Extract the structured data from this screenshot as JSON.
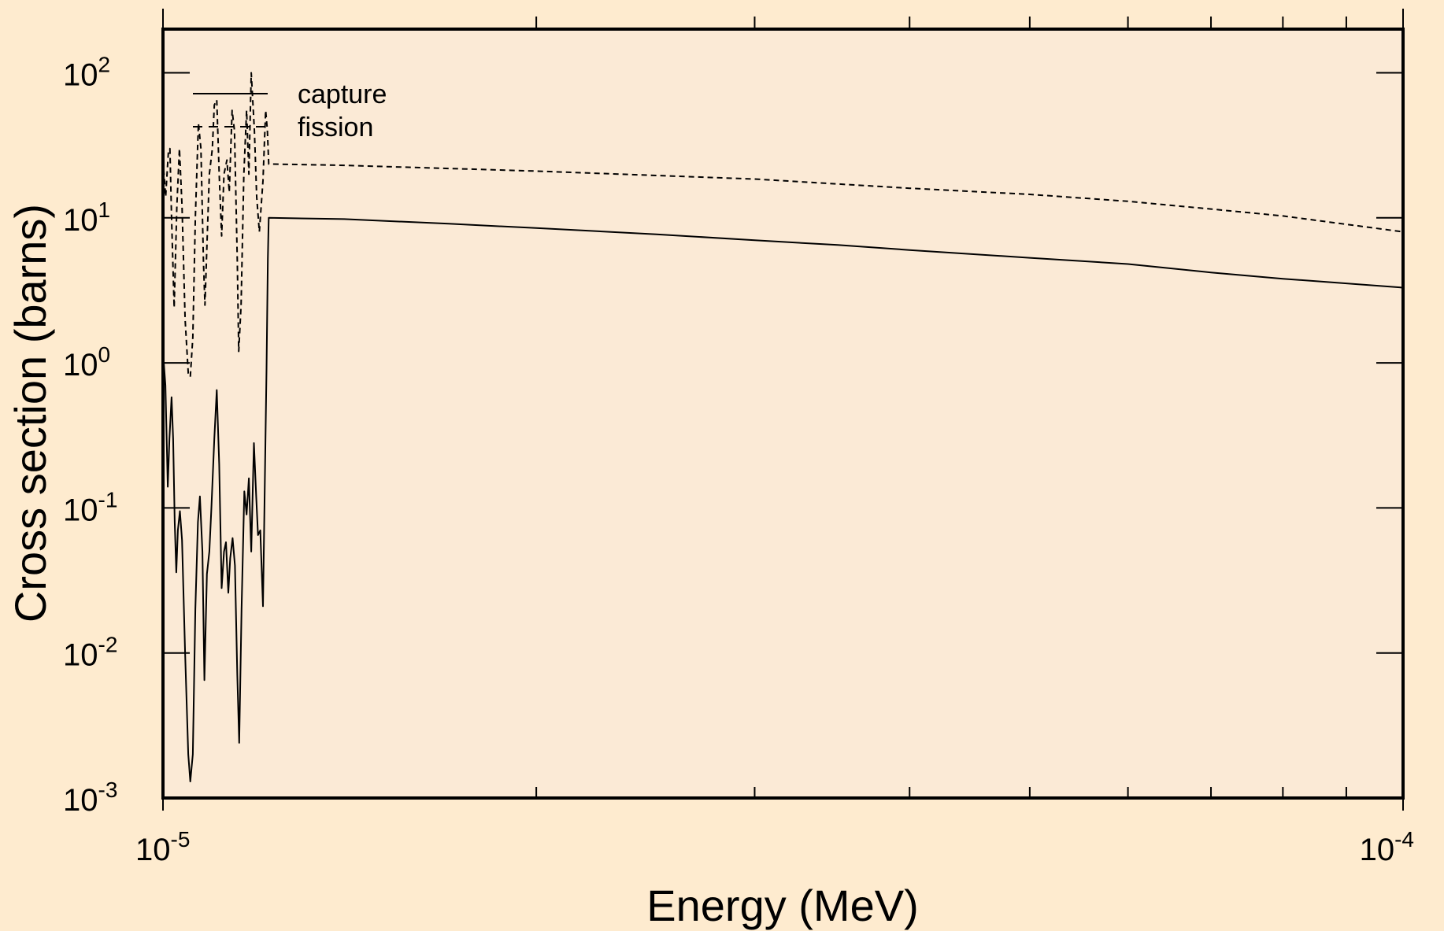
{
  "chart_data": {
    "type": "line",
    "title": "",
    "xlabel": "Energy (MeV)",
    "ylabel": "Cross section (barns)",
    "x_scale": "log",
    "y_scale": "log",
    "xlim": [
      1e-05,
      0.0001
    ],
    "ylim": [
      0.001,
      200
    ],
    "grid": false,
    "legend_position": "top-left",
    "colors": {
      "background": "#feebcf",
      "plot_area": "#fbead6",
      "line": "#000000"
    },
    "x_ticks": [
      {
        "base": "10",
        "exp": "-5",
        "value": 1e-05
      },
      {
        "base": "10",
        "exp": "-4",
        "value": 0.0001
      }
    ],
    "y_ticks": [
      {
        "base": "10",
        "exp": "2",
        "value": 100
      },
      {
        "base": "10",
        "exp": "1",
        "value": 10
      },
      {
        "base": "10",
        "exp": "0",
        "value": 1
      },
      {
        "base": "10",
        "exp": "-1",
        "value": 0.1
      },
      {
        "base": "10",
        "exp": "-2",
        "value": 0.01
      },
      {
        "base": "10",
        "exp": "-3",
        "value": 0.001
      }
    ],
    "series": [
      {
        "name": "capture",
        "style": "solid",
        "points": [
          [
            1e-05,
            1.2
          ],
          [
            1.0045e-05,
            0.7
          ],
          [
            1.009e-05,
            0.14
          ],
          [
            1.012e-05,
            0.3
          ],
          [
            1.016e-05,
            0.58
          ],
          [
            1.019e-05,
            0.3
          ],
          [
            1.022e-05,
            0.08
          ],
          [
            1.025e-05,
            0.036
          ],
          [
            1.028e-05,
            0.07
          ],
          [
            1.032e-05,
            0.095
          ],
          [
            1.036e-05,
            0.06
          ],
          [
            1.042e-05,
            0.01
          ],
          [
            1.048e-05,
            0.002
          ],
          [
            1.052e-05,
            0.0013
          ],
          [
            1.057e-05,
            0.002
          ],
          [
            1.062e-05,
            0.02
          ],
          [
            1.067e-05,
            0.08
          ],
          [
            1.071e-05,
            0.12
          ],
          [
            1.076e-05,
            0.05
          ],
          [
            1.08e-05,
            0.0065
          ],
          [
            1.085e-05,
            0.035
          ],
          [
            1.09e-05,
            0.05
          ],
          [
            1.094e-05,
            0.1
          ],
          [
            1.1e-05,
            0.3
          ],
          [
            1.105e-05,
            0.65
          ],
          [
            1.11e-05,
            0.2
          ],
          [
            1.115e-05,
            0.028
          ],
          [
            1.12e-05,
            0.05
          ],
          [
            1.124e-05,
            0.058
          ],
          [
            1.129e-05,
            0.026
          ],
          [
            1.133e-05,
            0.045
          ],
          [
            1.138e-05,
            0.062
          ],
          [
            1.143e-05,
            0.04
          ],
          [
            1.148e-05,
            0.007
          ],
          [
            1.152e-05,
            0.0024
          ],
          [
            1.157e-05,
            0.02
          ],
          [
            1.163e-05,
            0.13
          ],
          [
            1.168e-05,
            0.09
          ],
          [
            1.173e-05,
            0.16
          ],
          [
            1.178e-05,
            0.05
          ],
          [
            1.184e-05,
            0.28
          ],
          [
            1.189e-05,
            0.12
          ],
          [
            1.193e-05,
            0.065
          ],
          [
            1.198e-05,
            0.07
          ],
          [
            1.204e-05,
            0.021
          ],
          [
            1.212e-05,
            0.9
          ],
          [
            1.215e-05,
            5.2
          ],
          [
            1.217e-05,
            10.0
          ],
          [
            1.4e-05,
            9.8
          ],
          [
            1.7e-05,
            9.1
          ],
          [
            2e-05,
            8.5
          ],
          [
            2.5e-05,
            7.7
          ],
          [
            3e-05,
            7.0
          ],
          [
            3.5e-05,
            6.5
          ],
          [
            4e-05,
            6.0
          ],
          [
            5e-05,
            5.3
          ],
          [
            6e-05,
            4.8
          ],
          [
            7e-05,
            4.2
          ],
          [
            8e-05,
            3.8
          ],
          [
            0.0001,
            3.3
          ]
        ]
      },
      {
        "name": "fission",
        "style": "dashed",
        "points": [
          [
            1e-05,
            25.0
          ],
          [
            1.005e-05,
            14.0
          ],
          [
            1.01e-05,
            28.0
          ],
          [
            1.013e-05,
            30.0
          ],
          [
            1.016e-05,
            10.0
          ],
          [
            1.021e-05,
            2.4
          ],
          [
            1.026e-05,
            12.0
          ],
          [
            1.031e-05,
            30.0
          ],
          [
            1.036e-05,
            12.0
          ],
          [
            1.042e-05,
            2.0
          ],
          [
            1.048e-05,
            0.85
          ],
          [
            1.052e-05,
            0.8
          ],
          [
            1.057e-05,
            1.5
          ],
          [
            1.062e-05,
            10.0
          ],
          [
            1.068e-05,
            45.0
          ],
          [
            1.073e-05,
            30.0
          ],
          [
            1.078e-05,
            5.0
          ],
          [
            1.081e-05,
            2.5
          ],
          [
            1.086e-05,
            8.0
          ],
          [
            1.09e-05,
            20.0
          ],
          [
            1.096e-05,
            30.0
          ],
          [
            1.1e-05,
            60.0
          ],
          [
            1.105e-05,
            65.0
          ],
          [
            1.11e-05,
            20.0
          ],
          [
            1.115e-05,
            7.5
          ],
          [
            1.12e-05,
            20.0
          ],
          [
            1.126e-05,
            25.0
          ],
          [
            1.131e-05,
            15.0
          ],
          [
            1.137e-05,
            55.0
          ],
          [
            1.142e-05,
            40.0
          ],
          [
            1.148e-05,
            5.0
          ],
          [
            1.151e-05,
            1.2
          ],
          [
            1.156e-05,
            2.5
          ],
          [
            1.162e-05,
            20.0
          ],
          [
            1.168e-05,
            55.0
          ],
          [
            1.173e-05,
            20.0
          ],
          [
            1.178e-05,
            100.0
          ],
          [
            1.185e-05,
            40.0
          ],
          [
            1.19e-05,
            14.0
          ],
          [
            1.196e-05,
            8.0
          ],
          [
            1.204e-05,
            18.0
          ],
          [
            1.21e-05,
            55.0
          ],
          [
            1.214e-05,
            40.0
          ],
          [
            1.217e-05,
            23.5
          ],
          [
            1.4e-05,
            23.0
          ],
          [
            2e-05,
            21.0
          ],
          [
            3e-05,
            18.5
          ],
          [
            4e-05,
            16.0
          ],
          [
            5e-05,
            14.5
          ],
          [
            6e-05,
            13.0
          ],
          [
            7e-05,
            11.5
          ],
          [
            8e-05,
            10.3
          ],
          [
            0.0001,
            8.0
          ]
        ]
      }
    ]
  }
}
